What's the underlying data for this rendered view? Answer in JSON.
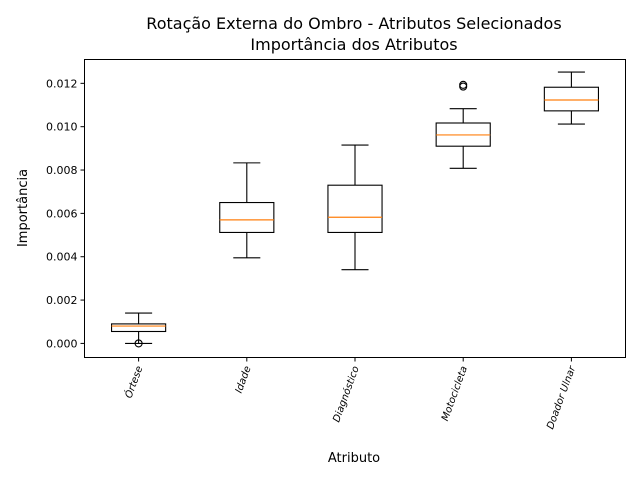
{
  "chart_data": {
    "type": "box",
    "title": "Rotação Externa do Ombro - Atributos Selecionados",
    "subtitle": "Importância dos Atributos",
    "xlabel": "Atributo",
    "ylabel": "Importância",
    "ylim": [
      -0.00065,
      0.0131
    ],
    "yticks": [
      "0.000",
      "0.002",
      "0.004",
      "0.006",
      "0.008",
      "0.010",
      "0.012"
    ],
    "categories": [
      "Órtese",
      "Idade",
      "Diagnóstico",
      "Motocicleta",
      "Doador Ulnar"
    ],
    "boxes": [
      {
        "whisker_low": 0.0,
        "q1": 0.00055,
        "median": 0.0008,
        "q3": 0.0009,
        "whisker_high": 0.0014,
        "outliers": [
          0.0
        ]
      },
      {
        "whisker_low": 0.00395,
        "q1": 0.00512,
        "median": 0.0057,
        "q3": 0.0065,
        "whisker_high": 0.00833,
        "outliers": []
      },
      {
        "whisker_low": 0.0034,
        "q1": 0.00512,
        "median": 0.00582,
        "q3": 0.0073,
        "whisker_high": 0.00915,
        "outliers": []
      },
      {
        "whisker_low": 0.00808,
        "q1": 0.0091,
        "median": 0.00962,
        "q3": 0.01017,
        "whisker_high": 0.01083,
        "outliers": [
          0.01185,
          0.01193
        ]
      },
      {
        "whisker_low": 0.01012,
        "q1": 0.01073,
        "median": 0.01123,
        "q3": 0.01182,
        "whisker_high": 0.01252,
        "outliers": []
      }
    ],
    "colors": {
      "box": "#000000",
      "median": "#ff7f0e"
    },
    "grid": false,
    "xtick_rotation": -70
  }
}
